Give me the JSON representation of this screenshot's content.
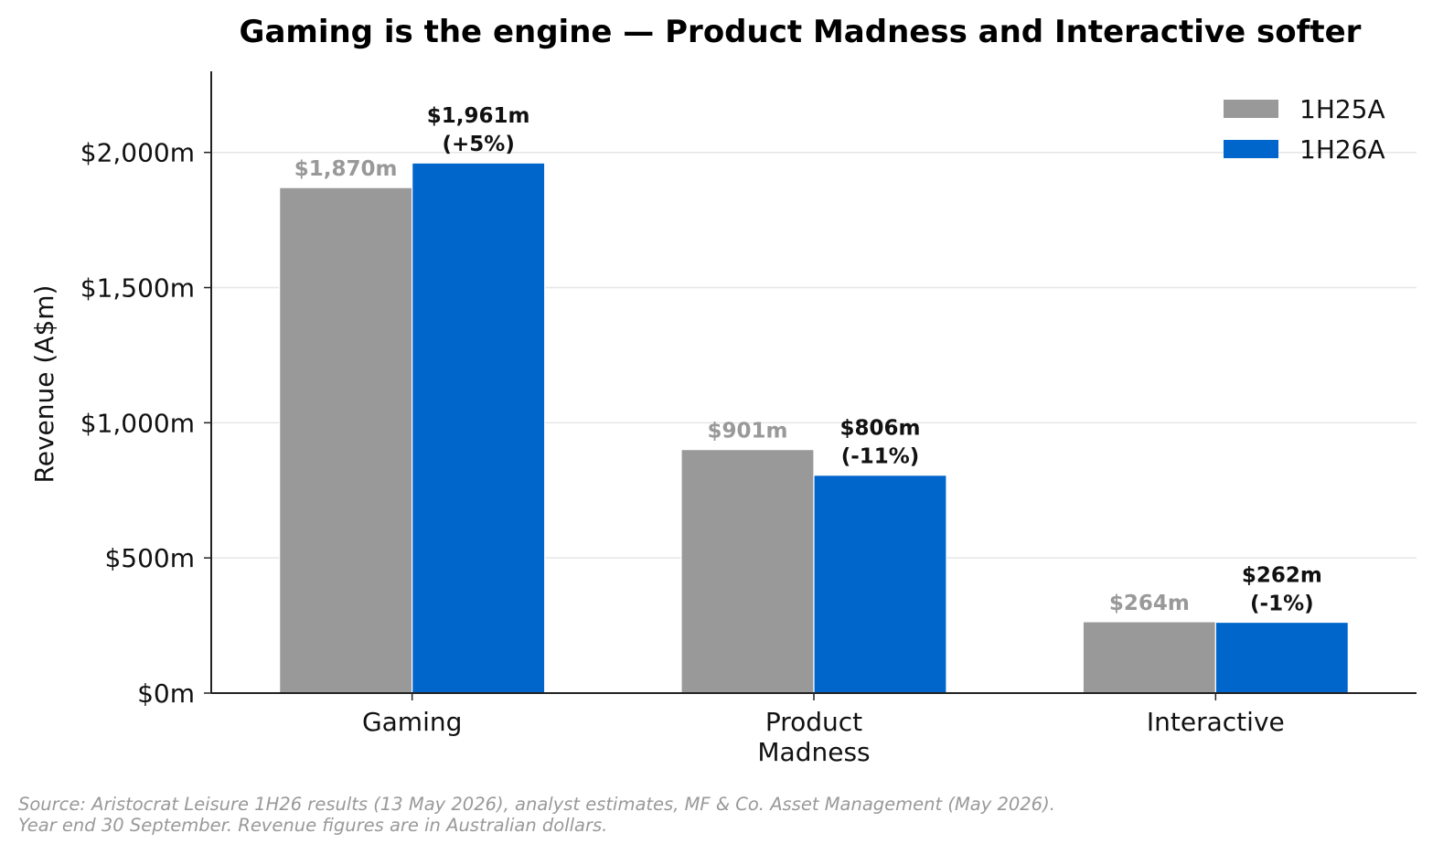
{
  "chart_data": {
    "type": "bar",
    "title": "Gaming is the engine — Product Madness and Interactive softer",
    "ylabel": "Revenue (A$m)",
    "xlabel": "",
    "ylim": [
      0,
      2300
    ],
    "yticks": [
      0,
      500,
      1000,
      1500,
      2000
    ],
    "ytick_labels": [
      "$0m",
      "$500m",
      "$1,000m",
      "$1,500m",
      "$2,000m"
    ],
    "categories": [
      [
        "Gaming"
      ],
      [
        "Product",
        "Madness"
      ],
      [
        "Interactive"
      ]
    ],
    "series": [
      {
        "name": "1H25A",
        "color": "#999999",
        "values": [
          1870,
          901,
          264
        ],
        "labels": [
          [
            "$1,870m"
          ],
          [
            "$901m"
          ],
          [
            "$264m"
          ]
        ]
      },
      {
        "name": "1H26A",
        "color": "#0066CC",
        "values": [
          1961,
          806,
          262
        ],
        "labels": [
          [
            "$1,961m",
            "(+5%)"
          ],
          [
            "$806m",
            "(-11%)"
          ],
          [
            "$262m",
            "(-1%)"
          ]
        ]
      }
    ],
    "grid": "y",
    "legend_position": "top-right"
  },
  "source_note": "Source: Aristocrat Leisure 1H26 results (13 May 2026), analyst estimates, MF & Co. Asset Management (May 2026). Year end 30 September. Revenue figures are in Australian dollars."
}
